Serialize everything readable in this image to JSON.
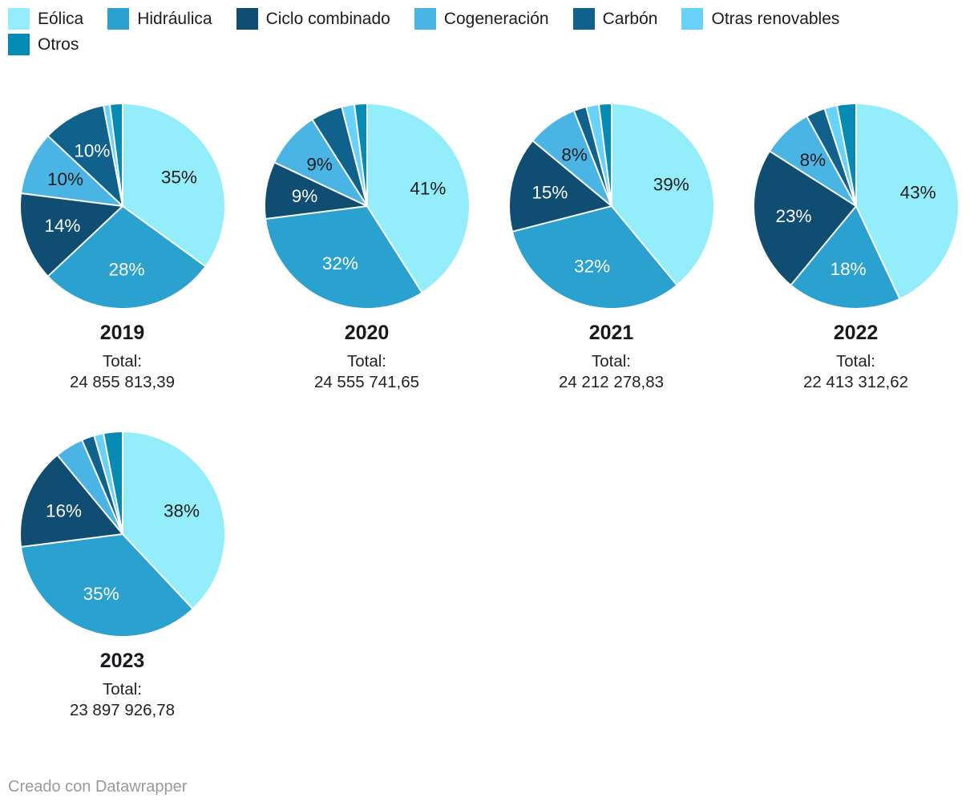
{
  "legend": {
    "rows": [
      [
        "Eólica",
        "Hidráulica",
        "Ciclo combinado",
        "Cogeneración",
        "Carbón",
        "Otras renovables"
      ],
      [
        "Otros"
      ]
    ]
  },
  "series_meta": {
    "categories": [
      "Eólica",
      "Hidráulica",
      "Ciclo combinado",
      "Cogeneración",
      "Carbón",
      "Otras renovables",
      "Otros"
    ],
    "ids": [
      "eolica",
      "hidraulica",
      "ciclo-combinado",
      "cogeneracion",
      "carbon",
      "otras-renovables",
      "otros"
    ],
    "colors": {
      "Eólica": "#94edfa",
      "Hidráulica": "#2aa1ce",
      "Ciclo combinado": "#104d72",
      "Cogeneración": "#4ab4e4",
      "Carbón": "#11618d",
      "Otras renovables": "#69d2fa",
      "Otros": "#058ab4"
    },
    "label_colors": {
      "Eólica": "#1d1d1d",
      "Hidráulica": "#ffffff",
      "Ciclo combinado": "#ffffff",
      "Cogeneración": "#1d1d1d",
      "Carbón": "#ffffff",
      "Otras renovables": "#1d1d1d",
      "Otros": "#ffffff"
    }
  },
  "chart_data": {
    "type": "pie",
    "legend_position": "top-left",
    "start_angle_deg": 0,
    "direction": "clockwise",
    "categories": [
      "Eólica",
      "Hidráulica",
      "Ciclo combinado",
      "Cogeneración",
      "Carbón",
      "Otras renovables",
      "Otros"
    ],
    "charts": [
      {
        "title": "2019",
        "total_label": "Total:",
        "total_value": "24 855 813,39",
        "values": [
          35,
          28,
          14,
          10,
          10,
          1,
          2
        ],
        "slice_labels": [
          "35%",
          "28%",
          "14%",
          "10%",
          "10%",
          "",
          ""
        ]
      },
      {
        "title": "2020",
        "total_label": "Total:",
        "total_value": "24 555 741,65",
        "values": [
          41,
          32,
          9,
          9,
          5,
          2,
          2
        ],
        "slice_labels": [
          "41%",
          "32%",
          "9%",
          "9%",
          "",
          "",
          ""
        ]
      },
      {
        "title": "2021",
        "total_label": "Total:",
        "total_value": "24 212 278,83",
        "values": [
          39,
          32,
          15,
          8,
          2,
          2,
          2
        ],
        "slice_labels": [
          "39%",
          "32%",
          "15%",
          "8%",
          "",
          "",
          ""
        ]
      },
      {
        "title": "2022",
        "total_label": "Total:",
        "total_value": "22 413 312,62",
        "values": [
          43,
          18,
          23,
          8,
          3,
          2,
          3
        ],
        "slice_labels": [
          "43%",
          "18%",
          "23%",
          "8%",
          "",
          "",
          ""
        ]
      },
      {
        "title": "2023",
        "total_label": "Total:",
        "total_value": "23 897 926,78",
        "values": [
          38,
          35,
          16,
          4.5,
          2,
          1.5,
          3
        ],
        "slice_labels": [
          "38%",
          "35%",
          "16%",
          "",
          "",
          "",
          ""
        ]
      }
    ]
  },
  "footer": {
    "text": "Creado con Datawrapper"
  },
  "colors": {
    "background": "#ffffff",
    "divider": "#ffffff",
    "year_text": "#18191c",
    "total_text": "#222222",
    "footer_text": "#9a9a9a"
  }
}
